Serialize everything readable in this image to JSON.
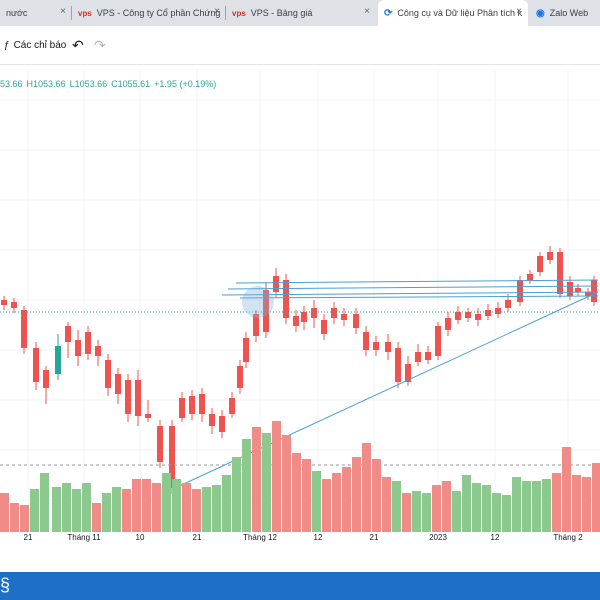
{
  "tabs": [
    {
      "label": "nước",
      "icon": "",
      "active": false
    },
    {
      "label": "VPS - Công ty Cổ phần Chứng",
      "icon": "vps",
      "active": false
    },
    {
      "label": "VPS - Bảng giá",
      "icon": "vps",
      "active": false
    },
    {
      "label": "Công cụ và Dữ liệu Phân tích k",
      "icon": "globe",
      "active": true
    },
    {
      "label": "Zalo Web",
      "icon": "zalo",
      "active": false
    }
  ],
  "tab_close_glyph": "×",
  "toolbar": {
    "indicators_label": "Các chỉ báo",
    "undo_icon": "↶",
    "redo_icon": "↷"
  },
  "ohlc": {
    "open": "53.66",
    "high": "H1053.66",
    "low": "L1053.66",
    "close": "C1055.61",
    "change": "+1.95 (+0.19%)"
  },
  "x_axis_labels": [
    "21",
    "Tháng 11",
    "10",
    "21",
    "Tháng 12",
    "12",
    "21",
    "2023",
    "12",
    "Tháng 2"
  ],
  "colors": {
    "up": "#26a69a",
    "down": "#ef5350",
    "vol_up": "#8cc98e",
    "vol_down": "#f08b87",
    "trendline": "#4a9fd4",
    "taskbar": "#1e6fc8"
  }
}
